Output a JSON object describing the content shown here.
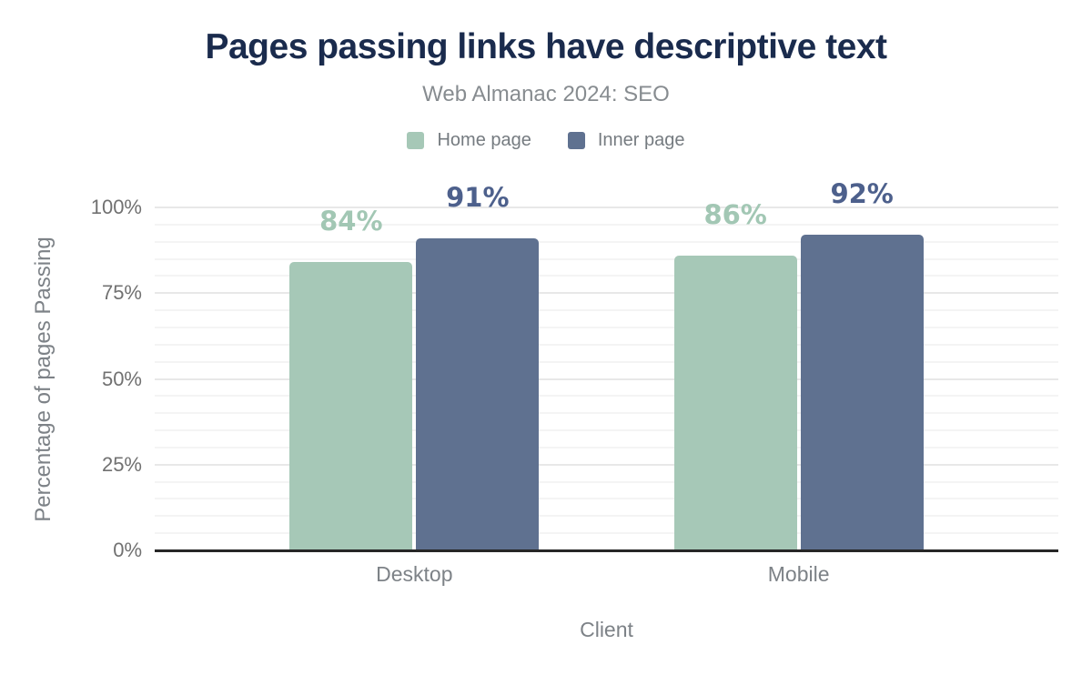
{
  "title": "Pages passing links have descriptive text",
  "subtitle": "Web Almanac 2024: SEO",
  "chart_data": {
    "type": "bar",
    "categories": [
      "Desktop",
      "Mobile"
    ],
    "series": [
      {
        "name": "Home page",
        "color": "#a6c8b7",
        "label_color": "#a2c7b4",
        "values": [
          84,
          86
        ]
      },
      {
        "name": "Inner page",
        "color": "#5f7190",
        "label_color": "#4d608c",
        "values": [
          91,
          92
        ]
      }
    ],
    "value_suffix": "%",
    "xlabel": "Client",
    "ylabel": "Percentage of pages Passing",
    "ylim": [
      0,
      100
    ],
    "yticks": [
      0,
      25,
      50,
      75,
      100
    ],
    "ytick_labels": [
      "0%",
      "25%",
      "50%",
      "75%",
      "100%"
    ],
    "minor_grid_step": 5,
    "major_grid_step": 25,
    "grid": true,
    "legend_position": "top"
  },
  "colors": {
    "title": "#1a2b4d",
    "subtitle": "#878c90",
    "axis_line": "#262626",
    "tick_label": "#717171",
    "axis_title": "#7d8287",
    "grid_minor": "#f4f4f4",
    "grid_major": "#e8e8e8",
    "background": "#ffffff"
  }
}
